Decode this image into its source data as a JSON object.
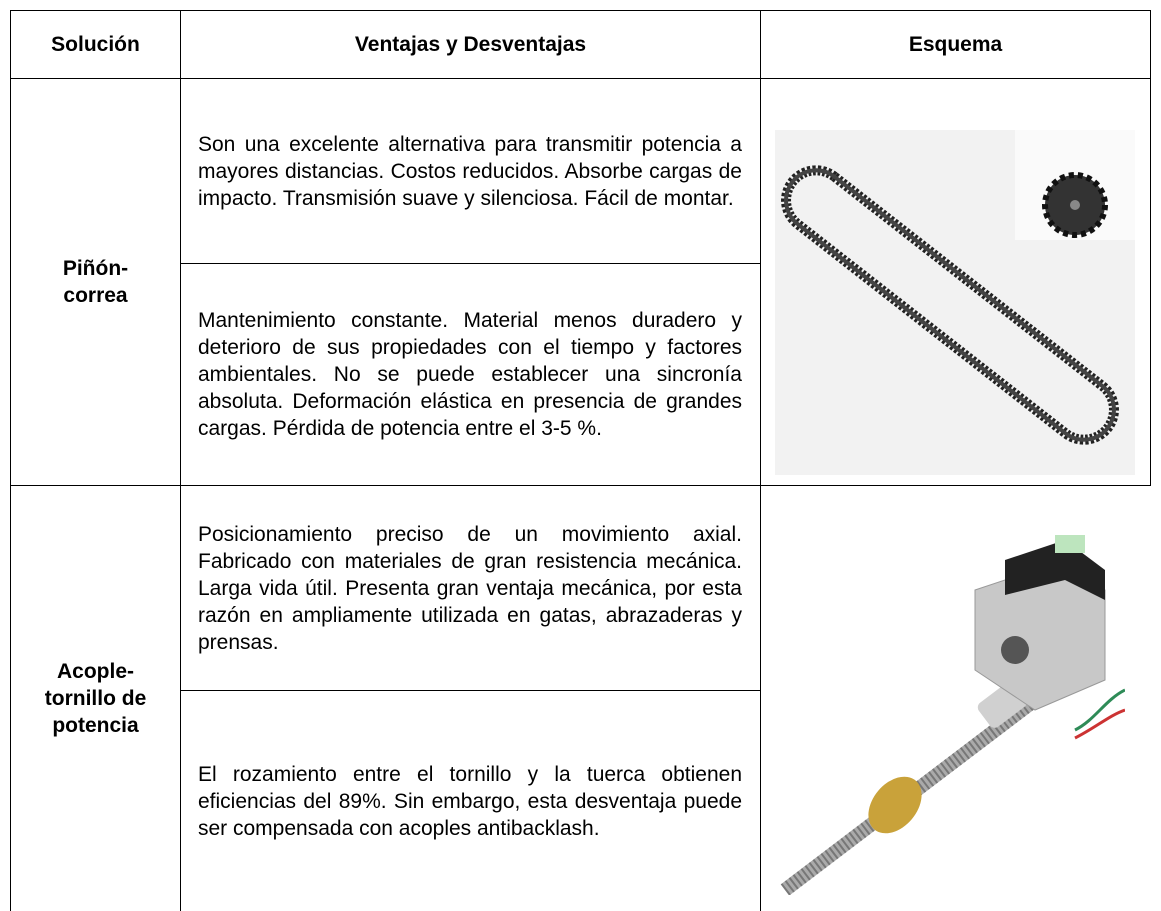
{
  "table": {
    "header": [
      "Solución",
      "Ventajas y Desventajas",
      "Esquema"
    ],
    "rows": [
      {
        "solution": "Piñón-correa",
        "advantages": "Son una excelente alternativa para transmitir potencia a mayores distancias. Costos reducidos. Absorbe cargas de impacto. Transmisión suave y silenciosa. Fácil de montar.",
        "disadvantages": "Mantenimiento constante. Material menos duradero y deterioro de sus propiedades con el tiempo y factores ambientales. No se puede establecer una sincronía absoluta. Deformación elástica en presencia de grandes cargas. Pérdida de potencia entre el 3-5 %."
      },
      {
        "solution": "Acople-tornillo de potencia",
        "advantages": "Posicionamiento preciso de un movimiento axial. Fabricado con materiales de gran resistencia mecánica. Larga vida útil. Presenta gran ventaja mecánica, por esta razón en ampliamente utilizada en gatas, abrazaderas y prensas.",
        "disadvantages": "El rozamiento entre el tornillo y la tuerca obtienen eficiencias del 89%. Sin embargo, esta desventaja puede ser compensada con acoples antibacklash."
      }
    ]
  }
}
